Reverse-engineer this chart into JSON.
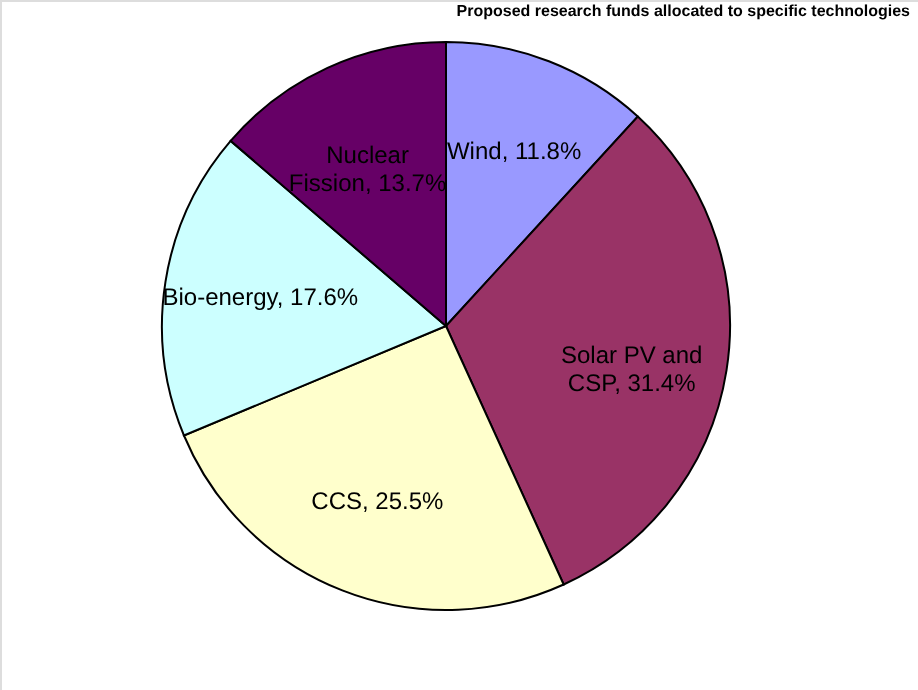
{
  "chart_data": {
    "type": "pie",
    "title": "Proposed research funds allocated to specific technologies",
    "categories": [
      "Wind",
      "Solar PV and CSP",
      "CCS",
      "Bio-energy",
      "Nuclear Fission"
    ],
    "values": [
      11.8,
      31.4,
      25.5,
      17.6,
      13.7
    ],
    "colors": [
      "#9999ff",
      "#993366",
      "#ffffcc",
      "#ccffff",
      "#660066"
    ],
    "value_labels": [
      "11.8%",
      "31.4%",
      "25.5%",
      "17.6%",
      "13.7%"
    ]
  }
}
